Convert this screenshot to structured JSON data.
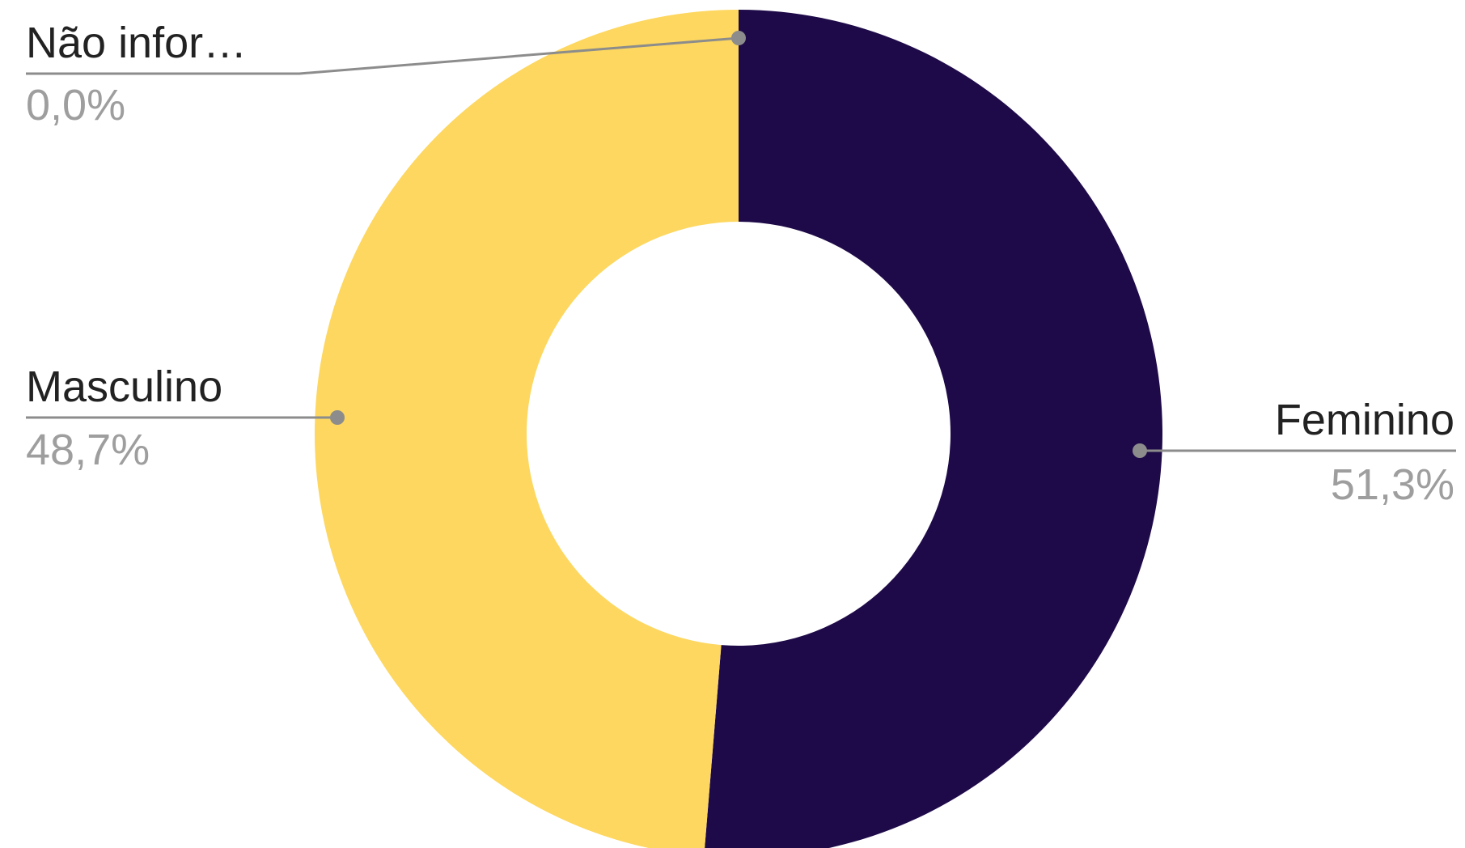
{
  "chart_data": {
    "type": "pie",
    "donut": true,
    "legend": "none",
    "series": [
      {
        "label": "Feminino",
        "value": 51.3,
        "display_label": "Feminino",
        "display_value": "51,3%",
        "color": "#1e0a48"
      },
      {
        "label": "Masculino",
        "value": 48.7,
        "display_label": "Masculino",
        "display_value": "48,7%",
        "color": "#fdd75f"
      },
      {
        "label": "Não informado",
        "value": 0.0,
        "display_label": "Não infor…",
        "display_value": "0,0%",
        "color": "#9e9e9e"
      }
    ]
  }
}
